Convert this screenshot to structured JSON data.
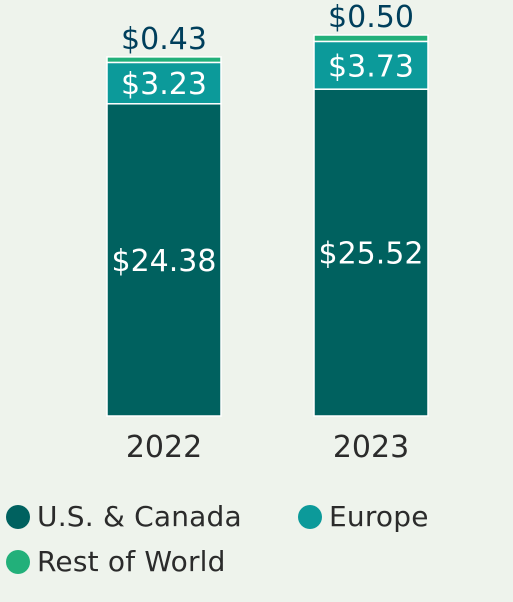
{
  "chart_data": {
    "type": "bar",
    "stacked": true,
    "categories": [
      "2022",
      "2023"
    ],
    "series": [
      {
        "name": "U.S. & Canada",
        "color": "#00615f",
        "values": [
          24.38,
          25.52
        ],
        "labels": [
          "$24.38",
          "$25.52"
        ]
      },
      {
        "name": "Europe",
        "color": "#0c9a9a",
        "values": [
          3.23,
          3.73
        ],
        "labels": [
          "$3.23",
          "$3.73"
        ]
      },
      {
        "name": "Rest of World",
        "color": "#22b07a",
        "values": [
          0.43,
          0.5
        ],
        "labels": [
          "$0.43",
          "$0.50"
        ]
      }
    ],
    "title": "",
    "xlabel": "",
    "ylabel": "",
    "ylim": [
      0,
      29.75
    ],
    "grid": false,
    "legend_position": "bottom"
  }
}
